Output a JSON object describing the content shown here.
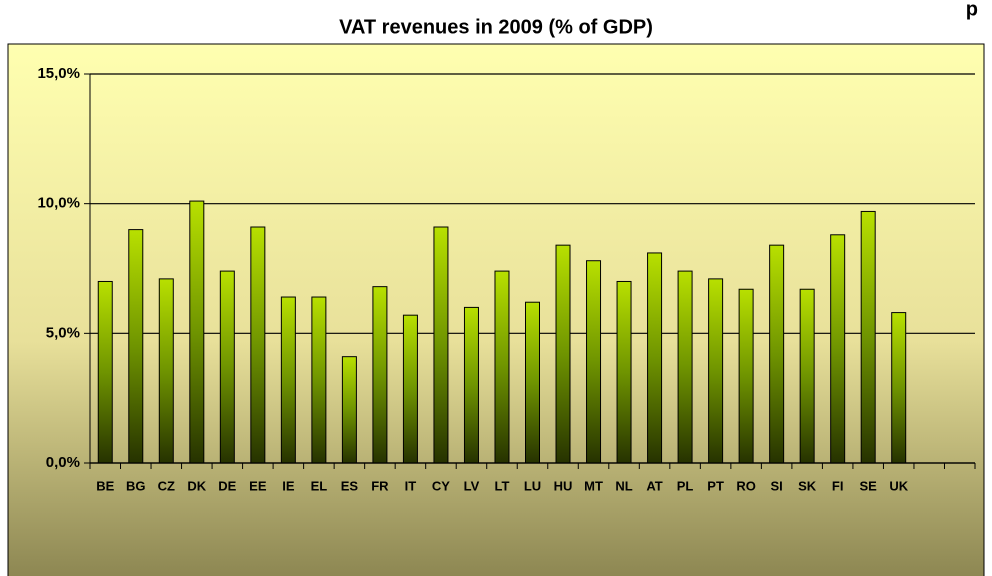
{
  "chart_data": {
    "type": "bar",
    "title": "VAT revenues in 2009 (% of GDP)",
    "annotation": "p",
    "categories": [
      "BE",
      "BG",
      "CZ",
      "DK",
      "DE",
      "EE",
      "IE",
      "EL",
      "ES",
      "FR",
      "IT",
      "CY",
      "LV",
      "LT",
      "LU",
      "HU",
      "MT",
      "NL",
      "AT",
      "PL",
      "PT",
      "RO",
      "SI",
      "SK",
      "FI",
      "SE",
      "UK",
      null,
      null
    ],
    "values": [
      7.0,
      9.0,
      7.1,
      10.1,
      7.4,
      9.1,
      6.4,
      6.4,
      4.1,
      6.8,
      5.7,
      9.1,
      6.0,
      7.4,
      6.2,
      8.4,
      7.8,
      7.0,
      8.1,
      7.4,
      7.1,
      6.7,
      8.4,
      6.7,
      8.8,
      9.7,
      5.8,
      null,
      null
    ],
    "color": "#a8cc00",
    "ylim": [
      0,
      15
    ],
    "yticks": [
      {
        "value": 0,
        "label": "0,0%"
      },
      {
        "value": 5,
        "label": "5,0%"
      },
      {
        "value": 10,
        "label": "10,0%"
      },
      {
        "value": 15,
        "label": "15,0%"
      }
    ],
    "grid": true
  }
}
